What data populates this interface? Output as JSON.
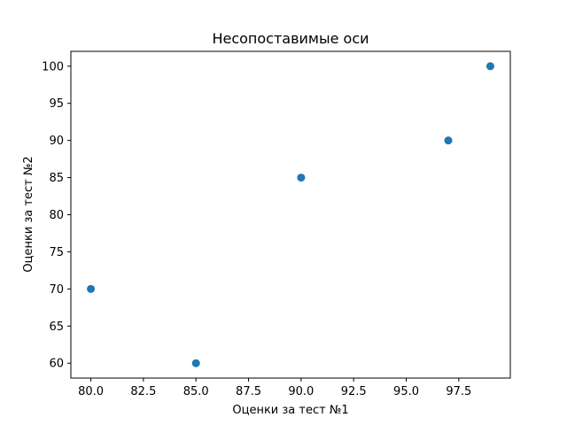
{
  "chart_data": {
    "type": "scatter",
    "title": "Несопоставимые оси",
    "xlabel": "Оценки за тест №1",
    "ylabel": "Оценки за тест №2",
    "series": [
      {
        "x": [
          80,
          85,
          90,
          97,
          99
        ],
        "y": [
          70,
          60,
          85,
          90,
          100
        ],
        "color": "#1f77b4"
      }
    ],
    "xlim": [
      79.05,
      99.95
    ],
    "ylim": [
      58,
      102
    ],
    "xticks": [
      "80.0",
      "82.5",
      "85.0",
      "87.5",
      "90.0",
      "92.5",
      "95.0",
      "97.5"
    ],
    "yticks": [
      "60",
      "65",
      "70",
      "75",
      "80",
      "85",
      "90",
      "95",
      "100"
    ],
    "grid": false,
    "legend": "none"
  }
}
